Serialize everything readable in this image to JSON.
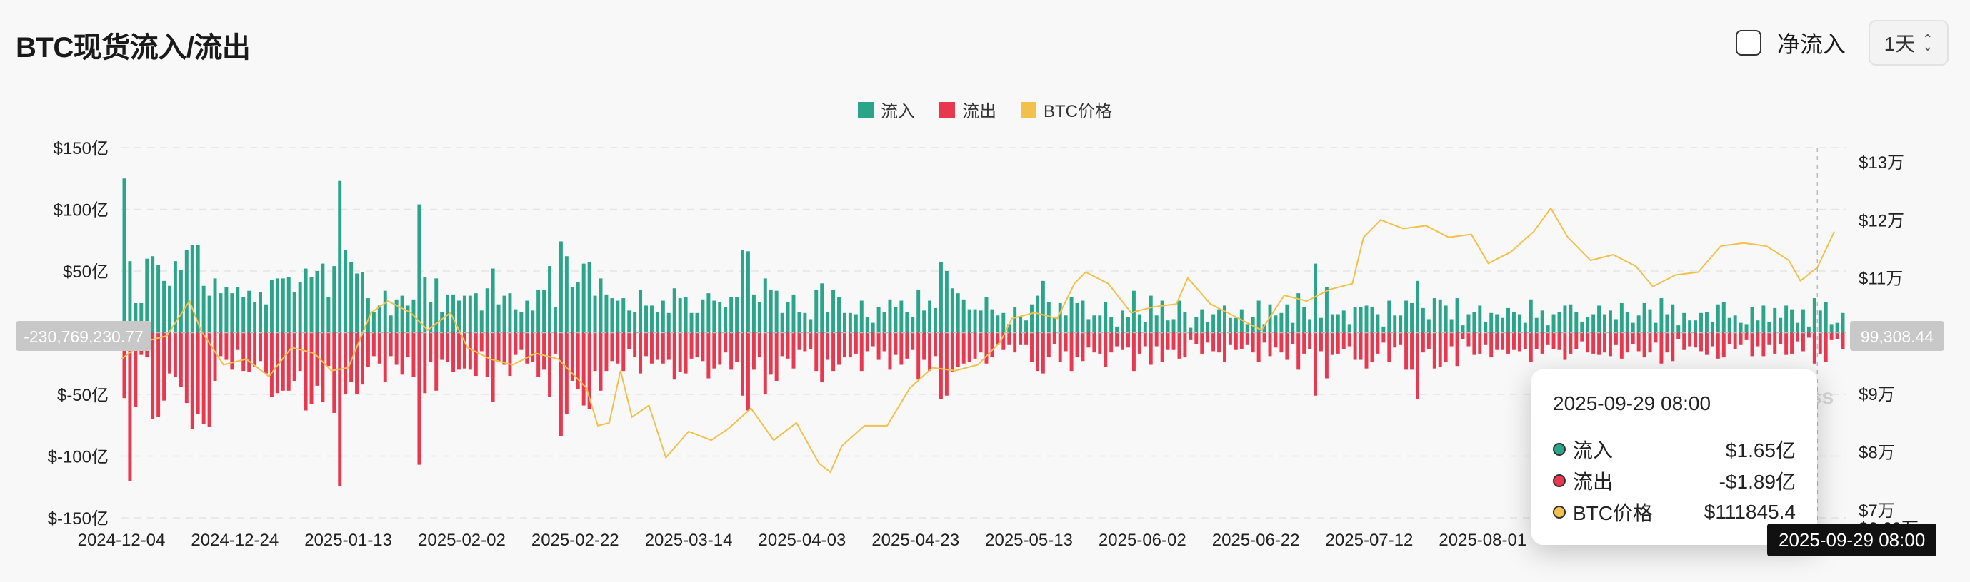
{
  "title": "BTC现货流入/流出",
  "controls": {
    "net_flow_label": "净流入",
    "net_flow_checked": false,
    "interval_label": "1天",
    "interval_arrow": "⌃⌄"
  },
  "legend": [
    {
      "label": "流入",
      "color": "#2aa58a"
    },
    {
      "label": "流出",
      "color": "#e8384f"
    },
    {
      "label": "BTC价格",
      "color": "#f0c14b"
    }
  ],
  "crosshair": {
    "left_value": "-230,769,230.77",
    "right_value": "99,308.44",
    "date_label": "2025-09-29 08:00"
  },
  "tooltip": {
    "date": "2025-09-29 08:00",
    "rows": [
      {
        "name": "流入",
        "value": "$1.65亿",
        "color": "#2aa58a"
      },
      {
        "name": "流出",
        "value": "-$1.89亿",
        "color": "#e8384f"
      },
      {
        "name": "BTC价格",
        "value": "$111845.4",
        "color": "#f0c14b"
      }
    ]
  },
  "watermark": "ss",
  "chart_data": {
    "type": "bar",
    "left_axis": {
      "ticks": [
        "$150亿",
        "$100亿",
        "$50亿",
        "",
        "$-50亿",
        "$-100亿",
        "$-150亿"
      ],
      "values": [
        150,
        100,
        50,
        0,
        -50,
        -100,
        -150
      ],
      "range": [
        -150,
        150
      ],
      "unit": "亿 USD"
    },
    "right_axis": {
      "ticks": [
        "$13万",
        "$12万",
        "$11万",
        "$9万",
        "$8万",
        "$7万",
        "$6.69万"
      ],
      "values": [
        130000,
        120000,
        110000,
        90000,
        80000,
        70000,
        66900
      ],
      "range": [
        66900,
        130000
      ]
    },
    "x_ticks": [
      "2024-12-04",
      "2024-12-24",
      "2025-01-13",
      "2025-02-02",
      "2025-02-22",
      "2025-03-14",
      "2025-04-03",
      "2025-04-23",
      "2025-05-13",
      "2025-06-02",
      "2025-06-22",
      "2025-07-12",
      "2025-08-01"
    ],
    "start_date": "2024-12-04",
    "end_date": "2025-10-04",
    "series": [
      {
        "name": "流入",
        "color": "#2aa58a",
        "values": [
          125,
          58,
          24,
          24,
          60,
          62,
          55,
          42,
          38,
          58,
          51,
          67,
          71,
          71,
          38,
          30,
          44,
          32,
          37,
          32,
          37,
          29,
          34,
          25,
          33,
          23,
          43,
          44,
          44,
          45,
          33,
          41,
          52,
          45,
          50,
          56,
          29,
          54,
          123,
          67,
          57,
          48,
          49,
          28,
          17,
          22,
          34,
          14,
          27,
          30,
          22,
          27,
          104,
          45,
          25,
          44,
          17,
          31,
          31,
          26,
          30,
          30,
          32,
          18,
          36,
          52,
          23,
          30,
          32,
          19,
          17,
          26,
          18,
          35,
          35,
          54,
          21,
          74,
          62,
          37,
          41,
          56,
          57,
          30,
          44,
          31,
          28,
          26,
          28,
          18,
          17,
          35,
          22,
          22,
          17,
          26,
          16,
          36,
          28,
          29,
          16,
          16,
          27,
          32,
          26,
          25,
          21,
          29,
          29,
          67,
          66,
          31,
          25,
          44,
          35,
          34,
          16,
          25,
          31,
          17,
          16,
          11,
          35,
          40,
          17,
          35,
          29,
          16,
          16,
          15,
          26,
          13,
          8,
          21,
          17,
          27,
          21,
          26,
          17,
          13,
          35,
          18,
          26,
          20,
          57,
          50,
          36,
          32,
          27,
          19,
          19,
          18,
          29,
          19,
          14,
          16,
          7,
          21,
          13,
          10,
          23,
          30,
          42,
          25,
          12,
          24,
          14,
          29,
          24,
          26,
          11,
          14,
          14,
          25,
          13,
          5,
          18,
          13,
          34,
          15,
          9,
          30,
          14,
          26,
          10,
          11,
          26,
          17,
          4,
          13,
          19,
          9,
          15,
          19,
          22,
          12,
          12,
          19,
          7,
          13,
          26,
          7,
          23,
          14,
          16,
          23,
          8,
          32,
          21,
          11,
          56,
          12,
          37,
          15,
          15,
          18,
          7,
          21,
          21,
          22,
          21,
          15,
          5,
          26,
          14,
          14,
          26,
          24,
          42,
          20,
          11,
          28,
          27,
          22,
          11,
          28,
          6,
          15,
          17,
          22,
          9,
          16,
          15,
          12,
          20,
          17,
          15,
          8,
          27,
          12,
          18,
          6,
          15,
          17,
          22,
          23,
          17,
          9,
          13,
          15,
          22,
          15,
          18,
          11,
          24,
          17,
          8,
          14,
          24,
          19,
          8,
          28,
          15,
          23,
          6,
          16,
          10,
          10,
          16,
          17,
          9,
          23,
          25,
          12,
          14,
          8,
          7,
          21,
          10,
          22,
          9,
          20,
          12,
          22,
          19,
          8,
          19,
          5,
          28,
          18,
          25,
          7,
          8,
          16
        ]
      },
      {
        "name": "流出",
        "color": "#e8384f",
        "values": [
          -53,
          -120,
          -60,
          -18,
          -20,
          -70,
          -68,
          -55,
          -33,
          -36,
          -44,
          -57,
          -78,
          -66,
          -74,
          -76,
          -39,
          -19,
          -22,
          -30,
          -14,
          -31,
          -32,
          -28,
          -23,
          -33,
          -52,
          -49,
          -47,
          -47,
          -39,
          -31,
          -63,
          -58,
          -43,
          -56,
          -27,
          -65,
          -124,
          -50,
          -40,
          -50,
          -42,
          -28,
          -19,
          -25,
          -40,
          -19,
          -26,
          -34,
          -20,
          -36,
          -107,
          -49,
          -24,
          -47,
          -22,
          -24,
          -32,
          -30,
          -29,
          -30,
          -35,
          -15,
          -36,
          -56,
          -24,
          -26,
          -35,
          -18,
          -14,
          -25,
          -24,
          -36,
          -30,
          -52,
          -17,
          -84,
          -66,
          -39,
          -46,
          -59,
          -62,
          -31,
          -47,
          -31,
          -23,
          -25,
          -31,
          -13,
          -20,
          -33,
          -19,
          -25,
          -22,
          -25,
          -22,
          -38,
          -32,
          -33,
          -21,
          -20,
          -23,
          -37,
          -29,
          -26,
          -16,
          -30,
          -24,
          -51,
          -63,
          -30,
          -20,
          -50,
          -34,
          -39,
          -19,
          -21,
          -29,
          -14,
          -15,
          -13,
          -31,
          -40,
          -22,
          -31,
          -26,
          -20,
          -20,
          -17,
          -31,
          -15,
          -11,
          -22,
          -15,
          -30,
          -18,
          -26,
          -21,
          -14,
          -38,
          -22,
          -31,
          -19,
          -54,
          -51,
          -32,
          -28,
          -25,
          -24,
          -21,
          -16,
          -25,
          -20,
          -10,
          -14,
          -10,
          -16,
          -10,
          -10,
          -24,
          -31,
          -33,
          -20,
          -9,
          -24,
          -15,
          -31,
          -20,
          -23,
          -12,
          -16,
          -17,
          -28,
          -16,
          -11,
          -14,
          -12,
          -31,
          -17,
          -11,
          -26,
          -11,
          -24,
          -14,
          -14,
          -21,
          -20,
          -6,
          -9,
          -17,
          -8,
          -15,
          -16,
          -24,
          -10,
          -14,
          -13,
          -10,
          -16,
          -24,
          -8,
          -19,
          -12,
          -16,
          -22,
          -9,
          -30,
          -17,
          -13,
          -51,
          -15,
          -37,
          -18,
          -17,
          -13,
          -11,
          -22,
          -22,
          -29,
          -24,
          -17,
          -8,
          -24,
          -12,
          -10,
          -30,
          -30,
          -54,
          -16,
          -13,
          -29,
          -28,
          -24,
          -11,
          -27,
          -5,
          -11,
          -18,
          -17,
          -10,
          -20,
          -14,
          -14,
          -17,
          -14,
          -15,
          -13,
          -24,
          -13,
          -17,
          -10,
          -13,
          -14,
          -22,
          -17,
          -13,
          -7,
          -16,
          -17,
          -18,
          -16,
          -19,
          -10,
          -21,
          -16,
          -9,
          -15,
          -20,
          -16,
          -8,
          -25,
          -16,
          -23,
          -5,
          -14,
          -11,
          -12,
          -15,
          -18,
          -11,
          -21,
          -20,
          -9,
          -13,
          -10,
          -6,
          -19,
          -11,
          -19,
          -10,
          -17,
          -9,
          -18,
          -17,
          -7,
          -15,
          -4,
          -25,
          -17,
          -24,
          -6,
          -5,
          -13
        ]
      }
    ],
    "price_series": {
      "name": "BTC价格",
      "color": "#f0c14b",
      "points": [
        [
          "2024-12-04",
          96000
        ],
        [
          "2024-12-08",
          99000
        ],
        [
          "2024-12-12",
          100000
        ],
        [
          "2024-12-16",
          106000
        ],
        [
          "2024-12-18",
          101000
        ],
        [
          "2024-12-22",
          95000
        ],
        [
          "2024-12-26",
          96000
        ],
        [
          "2024-12-30",
          93000
        ],
        [
          "2025-01-03",
          98000
        ],
        [
          "2025-01-07",
          97000
        ],
        [
          "2025-01-10",
          94000
        ],
        [
          "2025-01-13",
          94500
        ],
        [
          "2025-01-17",
          104000
        ],
        [
          "2025-01-20",
          106000
        ],
        [
          "2025-01-24",
          104000
        ],
        [
          "2025-01-27",
          101000
        ],
        [
          "2025-01-31",
          104000
        ],
        [
          "2025-02-03",
          98000
        ],
        [
          "2025-02-07",
          96000
        ],
        [
          "2025-02-11",
          95000
        ],
        [
          "2025-02-15",
          97000
        ],
        [
          "2025-02-19",
          96000
        ],
        [
          "2025-02-24",
          91000
        ],
        [
          "2025-02-26",
          84500
        ],
        [
          "2025-02-28",
          85000
        ],
        [
          "2025-03-02",
          94000
        ],
        [
          "2025-03-04",
          86000
        ],
        [
          "2025-03-07",
          88000
        ],
        [
          "2025-03-10",
          79000
        ],
        [
          "2025-03-14",
          83500
        ],
        [
          "2025-03-18",
          82000
        ],
        [
          "2025-03-21",
          84000
        ],
        [
          "2025-03-25",
          87500
        ],
        [
          "2025-03-29",
          82000
        ],
        [
          "2025-04-02",
          85000
        ],
        [
          "2025-04-06",
          78000
        ],
        [
          "2025-04-08",
          76500
        ],
        [
          "2025-04-10",
          81000
        ],
        [
          "2025-04-14",
          84500
        ],
        [
          "2025-04-18",
          84500
        ],
        [
          "2025-04-22",
          91000
        ],
        [
          "2025-04-26",
          94500
        ],
        [
          "2025-04-30",
          94000
        ],
        [
          "2025-05-04",
          95000
        ],
        [
          "2025-05-08",
          99000
        ],
        [
          "2025-05-10",
          103000
        ],
        [
          "2025-05-14",
          104000
        ],
        [
          "2025-05-18",
          103000
        ],
        [
          "2025-05-21",
          109000
        ],
        [
          "2025-05-23",
          111000
        ],
        [
          "2025-05-27",
          109000
        ],
        [
          "2025-05-31",
          104000
        ],
        [
          "2025-06-04",
          105000
        ],
        [
          "2025-06-08",
          105500
        ],
        [
          "2025-06-10",
          110000
        ],
        [
          "2025-06-14",
          105500
        ],
        [
          "2025-06-17",
          104000
        ],
        [
          "2025-06-21",
          102000
        ],
        [
          "2025-06-23",
          101000
        ],
        [
          "2025-06-27",
          107000
        ],
        [
          "2025-07-01",
          106000
        ],
        [
          "2025-07-05",
          108000
        ],
        [
          "2025-07-09",
          109000
        ],
        [
          "2025-07-11",
          117000
        ],
        [
          "2025-07-14",
          120000
        ],
        [
          "2025-07-18",
          118500
        ],
        [
          "2025-07-22",
          119000
        ],
        [
          "2025-07-26",
          117000
        ],
        [
          "2025-07-30",
          117500
        ],
        [
          "2025-08-02",
          112500
        ],
        [
          "2025-08-06",
          114500
        ],
        [
          "2025-08-10",
          118000
        ],
        [
          "2025-08-13",
          122000
        ],
        [
          "2025-08-16",
          117000
        ],
        [
          "2025-08-20",
          113000
        ],
        [
          "2025-08-24",
          114000
        ],
        [
          "2025-08-28",
          112000
        ],
        [
          "2025-08-31",
          108500
        ],
        [
          "2025-09-04",
          110500
        ],
        [
          "2025-09-08",
          111000
        ],
        [
          "2025-09-12",
          115500
        ],
        [
          "2025-09-16",
          116000
        ],
        [
          "2025-09-20",
          115500
        ],
        [
          "2025-09-24",
          113000
        ],
        [
          "2025-09-26",
          109500
        ],
        [
          "2025-09-29",
          111800
        ],
        [
          "2025-10-02",
          118000
        ]
      ]
    }
  }
}
